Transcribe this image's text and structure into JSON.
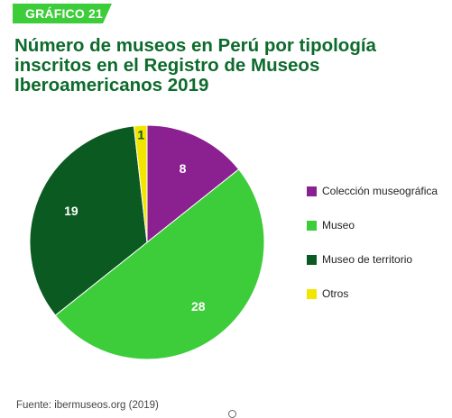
{
  "badge": {
    "label": "GRÁFICO 21",
    "color": "#3dcc3a"
  },
  "title_lines": [
    "Número de museos en Perú por tipología",
    "inscritos en el Registro de Museos",
    "Iberoamericanos 2019"
  ],
  "source": "Fuente: ibermuseos.org (2019)",
  "chart_data": {
    "type": "pie",
    "title": "Número de museos en Perú por tipología inscritos en el Registro de Museos Iberoamericanos 2019",
    "categories": [
      "Colección museográfica",
      "Museo",
      "Museo de territorio",
      "Otros"
    ],
    "values": [
      8,
      28,
      19,
      1
    ],
    "colors": [
      "#8b2190",
      "#3dcc3a",
      "#0b5a21",
      "#f2e600"
    ],
    "label_colors": [
      "#ffffff",
      "#ffffff",
      "#ffffff",
      "#0b5a21"
    ],
    "legend_placement": "right",
    "start": "top, clockwise"
  }
}
